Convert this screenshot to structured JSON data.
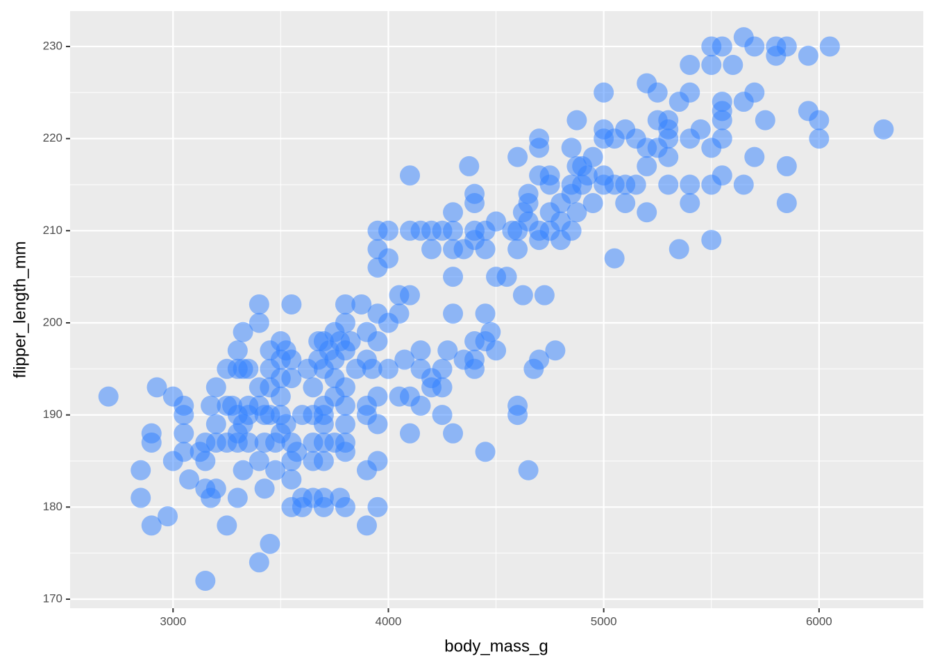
{
  "chart_data": {
    "type": "scatter",
    "x_label": "body_mass_g",
    "y_label": "flipper_length_mm",
    "color": "#2f80ff",
    "alpha": 0.5,
    "grid": true,
    "xlim": [
      2522,
      6484
    ],
    "ylim": [
      169.02,
      233.84
    ],
    "xticks": [
      3000,
      4000,
      5000,
      6000
    ],
    "yticks": [
      170,
      180,
      190,
      200,
      210,
      220,
      230
    ],
    "x": [
      2700,
      2850,
      2850,
      2900,
      2900,
      2900,
      2925,
      2975,
      3000,
      3000,
      3050,
      3050,
      3050,
      3050,
      3075,
      3125,
      3150,
      3150,
      3150,
      3150,
      3175,
      3175,
      3200,
      3200,
      3200,
      3200,
      3250,
      3250,
      3250,
      3250,
      3275,
      3300,
      3300,
      3300,
      3300,
      3300,
      3300,
      3325,
      3325,
      3325,
      3325,
      3350,
      3350,
      3350,
      3350,
      3400,
      3400,
      3400,
      3400,
      3400,
      3400,
      3425,
      3425,
      3425,
      3450,
      3450,
      3450,
      3450,
      3450,
      3475,
      3475,
      3500,
      3500,
      3500,
      3500,
      3500,
      3500,
      3525,
      3525,
      3550,
      3550,
      3550,
      3550,
      3550,
      3550,
      3550,
      3575,
      3600,
      3600,
      3600,
      3625,
      3650,
      3650,
      3650,
      3650,
      3650,
      3675,
      3675,
      3700,
      3700,
      3700,
      3700,
      3700,
      3700,
      3700,
      3700,
      3700,
      3725,
      3750,
      3750,
      3750,
      3750,
      3750,
      3775,
      3775,
      3800,
      3800,
      3800,
      3800,
      3800,
      3800,
      3800,
      3800,
      3800,
      3825,
      3850,
      3875,
      3900,
      3900,
      3900,
      3900,
      3900,
      3900,
      3925,
      3950,
      3950,
      3950,
      3950,
      3950,
      3950,
      3950,
      3950,
      3950,
      4000,
      4000,
      4000,
      4000,
      4050,
      4050,
      4050,
      4075,
      4100,
      4100,
      4100,
      4100,
      4100,
      4150,
      4150,
      4150,
      4150,
      4200,
      4200,
      4200,
      4200,
      4250,
      4250,
      4250,
      4250,
      4275,
      4300,
      4300,
      4300,
      4300,
      4300,
      4300,
      4350,
      4350,
      4375,
      4400,
      4400,
      4400,
      4400,
      4400,
      4400,
      4400,
      4450,
      4450,
      4450,
      4450,
      4450,
      4475,
      4500,
      4500,
      4500,
      4550,
      4575,
      4600,
      4600,
      4600,
      4600,
      4600,
      4625,
      4625,
      4650,
      4650,
      4650,
      4650,
      4675,
      4700,
      4700,
      4700,
      4700,
      4700,
      4700,
      4725,
      4750,
      4750,
      4750,
      4750,
      4775,
      4800,
      4800,
      4800,
      4850,
      4850,
      4850,
      4850,
      4875,
      4875,
      4875,
      4900,
      4900,
      4925,
      4950,
      4950,
      5000,
      5000,
      5000,
      5000,
      5000,
      5050,
      5050,
      5050,
      5100,
      5100,
      5100,
      5150,
      5150,
      5200,
      5200,
      5200,
      5200,
      5250,
      5250,
      5250,
      5300,
      5300,
      5300,
      5300,
      5300,
      5350,
      5350,
      5400,
      5400,
      5400,
      5400,
      5400,
      5450,
      5500,
      5500,
      5500,
      5500,
      5500,
      5550,
      5550,
      5550,
      5550,
      5550,
      5550,
      5600,
      5650,
      5650,
      5650,
      5700,
      5700,
      5700,
      5750,
      5800,
      5800,
      5850,
      5850,
      5850,
      5950,
      5950,
      6000,
      6000,
      6050,
      6300
    ],
    "y": [
      192,
      184,
      181,
      178,
      188,
      187,
      193,
      179,
      185,
      192,
      191,
      190,
      188,
      186,
      183,
      186,
      187,
      185,
      182,
      172,
      191,
      181,
      193,
      189,
      187,
      182,
      195,
      191,
      187,
      178,
      191,
      197,
      195,
      190,
      188,
      187,
      181,
      199,
      195,
      189,
      184,
      195,
      191,
      190,
      187,
      202,
      200,
      193,
      191,
      185,
      174,
      190,
      187,
      182,
      197,
      195,
      193,
      190,
      176,
      187,
      184,
      198,
      196,
      194,
      192,
      190,
      188,
      197,
      189,
      202,
      196,
      194,
      187,
      185,
      183,
      180,
      186,
      190,
      181,
      180,
      195,
      193,
      190,
      187,
      185,
      181,
      198,
      196,
      198,
      195,
      191,
      190,
      189,
      187,
      185,
      181,
      180,
      197,
      199,
      196,
      194,
      192,
      187,
      198,
      181,
      202,
      200,
      197,
      193,
      191,
      189,
      187,
      186,
      180,
      198,
      195,
      202,
      199,
      196,
      191,
      190,
      184,
      178,
      195,
      210,
      208,
      206,
      201,
      198,
      192,
      189,
      185,
      180,
      210,
      207,
      200,
      195,
      203,
      201,
      192,
      196,
      216,
      210,
      203,
      192,
      188,
      210,
      197,
      195,
      191,
      210,
      208,
      194,
      193,
      210,
      195,
      193,
      190,
      197,
      212,
      210,
      208,
      205,
      201,
      188,
      208,
      196,
      217,
      214,
      213,
      210,
      209,
      198,
      196,
      195,
      210,
      208,
      201,
      198,
      186,
      199,
      211,
      205,
      197,
      205,
      210,
      218,
      210,
      208,
      191,
      190,
      212,
      203,
      214,
      213,
      211,
      184,
      195,
      220,
      219,
      216,
      210,
      209,
      196,
      203,
      216,
      215,
      212,
      210,
      197,
      213,
      211,
      209,
      219,
      215,
      214,
      210,
      222,
      217,
      212,
      217,
      215,
      216,
      218,
      213,
      225,
      221,
      220,
      216,
      215,
      220,
      215,
      207,
      221,
      215,
      213,
      215,
      220,
      226,
      219,
      217,
      212,
      225,
      222,
      219,
      222,
      221,
      220,
      218,
      215,
      224,
      208,
      228,
      225,
      220,
      215,
      213,
      221,
      230,
      228,
      219,
      215,
      209,
      230,
      224,
      223,
      222,
      220,
      216,
      228,
      231,
      224,
      215,
      230,
      225,
      218,
      222,
      230,
      229,
      230,
      217,
      213,
      229,
      223,
      222,
      220,
      230,
      221
    ]
  }
}
